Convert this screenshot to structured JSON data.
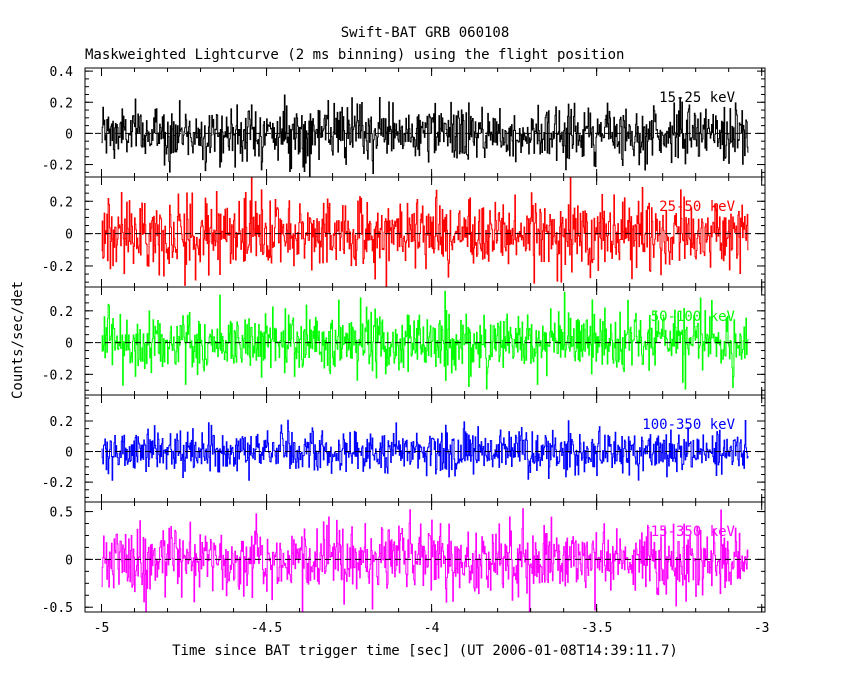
{
  "chart_data": {
    "type": "line",
    "title": "Swift-BAT GRB 060108",
    "subtitle": "Maskweighted Lightcurve (2 ms binning) using the flight position",
    "xlabel": "Time since BAT trigger time [sec] (UT 2006-01-08T14:39:11.7)",
    "ylabel": "Counts/sec/det",
    "xlim": [
      -5.05,
      -2.99
    ],
    "x_range_data": [
      -5.0,
      -3.04
    ],
    "x_ticks": [
      "-5",
      "-4.5",
      "-4",
      "-3.5",
      "-3"
    ],
    "x_tick_values": [
      -5,
      -4.5,
      -4,
      -3.5,
      -3
    ],
    "bin_width_sec": 0.002,
    "panels": [
      {
        "name": "15-25 keV",
        "label": "15-25 keV",
        "color": "#000000",
        "ylim": [
          -0.28,
          0.42
        ],
        "y_ticks": [
          "0.4",
          "0.2",
          "0",
          "-0.2"
        ],
        "y_tick_values": [
          0.4,
          0.2,
          0,
          -0.2
        ],
        "amplitude_sigma": 0.09
      },
      {
        "name": "25-50 keV",
        "label": "25-50 keV",
        "color": "#ff0000",
        "ylim": [
          -0.33,
          0.35
        ],
        "y_ticks": [
          "0.2",
          "0",
          "-0.2"
        ],
        "y_tick_values": [
          0.2,
          0,
          -0.2
        ],
        "amplitude_sigma": 0.11
      },
      {
        "name": "50-100 keV",
        "label": "50-100 keV",
        "color": "#00ff00",
        "ylim": [
          -0.33,
          0.35
        ],
        "y_ticks": [
          "0.2",
          "0",
          "-0.2"
        ],
        "y_tick_values": [
          0.2,
          0,
          -0.2
        ],
        "amplitude_sigma": 0.1
      },
      {
        "name": "100-350 keV",
        "label": "100-350 keV",
        "color": "#0000ff",
        "ylim": [
          -0.33,
          0.37
        ],
        "y_ticks": [
          "0.2",
          "0",
          "-0.2"
        ],
        "y_tick_values": [
          0.2,
          0,
          -0.2
        ],
        "amplitude_sigma": 0.07
      },
      {
        "name": "15-350 keV",
        "label": "15-350 keV",
        "color": "#ff00ff",
        "ylim": [
          -0.55,
          0.6
        ],
        "y_ticks": [
          "0.5",
          "0",
          "-0.5"
        ],
        "y_tick_values": [
          0.5,
          0,
          -0.5
        ],
        "amplitude_sigma": 0.18
      }
    ]
  }
}
